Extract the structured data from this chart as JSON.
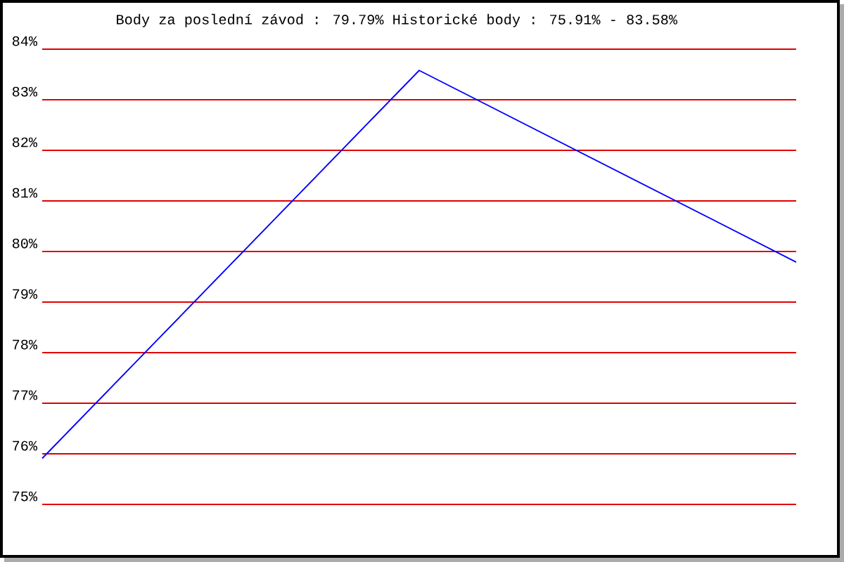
{
  "chart_data": {
    "type": "line",
    "title": "Body za poslední závod : 79.79%  Historické body : 75.91% - 83.58%",
    "categories": [
      null,
      null,
      null
    ],
    "series": [
      {
        "color": "#0000ff",
        "values": [
          75.91,
          83.58,
          79.79
        ]
      }
    ],
    "ylim": [
      75,
      84
    ],
    "yticks": [
      {
        "value": 75,
        "label": "75%"
      },
      {
        "value": 76,
        "label": "76%"
      },
      {
        "value": 77,
        "label": "77%"
      },
      {
        "value": 78,
        "label": "78%"
      },
      {
        "value": 79,
        "label": "79%"
      },
      {
        "value": 80,
        "label": "80%"
      },
      {
        "value": 81,
        "label": "81%"
      },
      {
        "value": 82,
        "label": "82%"
      },
      {
        "value": 83,
        "label": "83%"
      },
      {
        "value": 84,
        "label": "84%"
      }
    ],
    "grid": "y",
    "line_style": "solid"
  }
}
